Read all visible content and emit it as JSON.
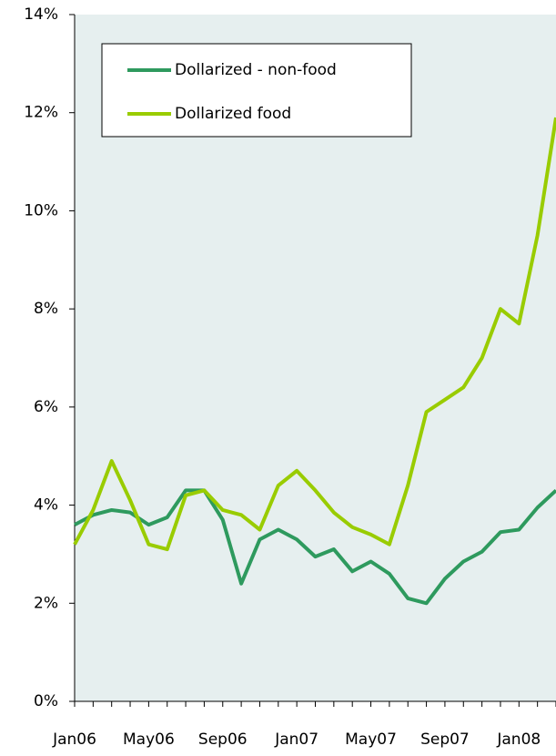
{
  "chart_data": {
    "type": "line",
    "categories": [
      "Jan06",
      null,
      null,
      null,
      "May06",
      null,
      null,
      null,
      "Sep06",
      null,
      null,
      null,
      "Jan07",
      null,
      null,
      null,
      "May07",
      null,
      null,
      null,
      "Sep07",
      null,
      null,
      null,
      "Jan08",
      null,
      null
    ],
    "series": [
      {
        "name": "Dollarized - non-food",
        "color": "#2e9a5e",
        "values": [
          3.6,
          3.8,
          3.9,
          3.85,
          3.6,
          3.75,
          4.3,
          4.3,
          3.7,
          2.4,
          3.3,
          3.5,
          3.3,
          2.95,
          3.1,
          2.65,
          2.85,
          2.6,
          2.1,
          2.0,
          2.5,
          2.85,
          3.05,
          3.45,
          3.5,
          3.95,
          4.3
        ]
      },
      {
        "name": "Dollarized food",
        "color": "#99cc00",
        "values": [
          3.2,
          3.9,
          4.9,
          4.1,
          3.2,
          3.1,
          4.2,
          4.3,
          3.9,
          3.8,
          3.5,
          4.4,
          4.7,
          4.3,
          3.85,
          3.55,
          3.4,
          3.2,
          4.4,
          5.9,
          6.15,
          6.4,
          7.0,
          8.0,
          7.7,
          9.5,
          11.9
        ]
      }
    ],
    "ylim": [
      0,
      14
    ],
    "yticks": [
      {
        "value": 0,
        "label": "0%"
      },
      {
        "value": 2,
        "label": "2%"
      },
      {
        "value": 4,
        "label": "4%"
      },
      {
        "value": 6,
        "label": "6%"
      },
      {
        "value": 8,
        "label": "8%"
      },
      {
        "value": 10,
        "label": "10%"
      },
      {
        "value": 12,
        "label": "12%"
      },
      {
        "value": 14,
        "label": "14%"
      }
    ]
  }
}
